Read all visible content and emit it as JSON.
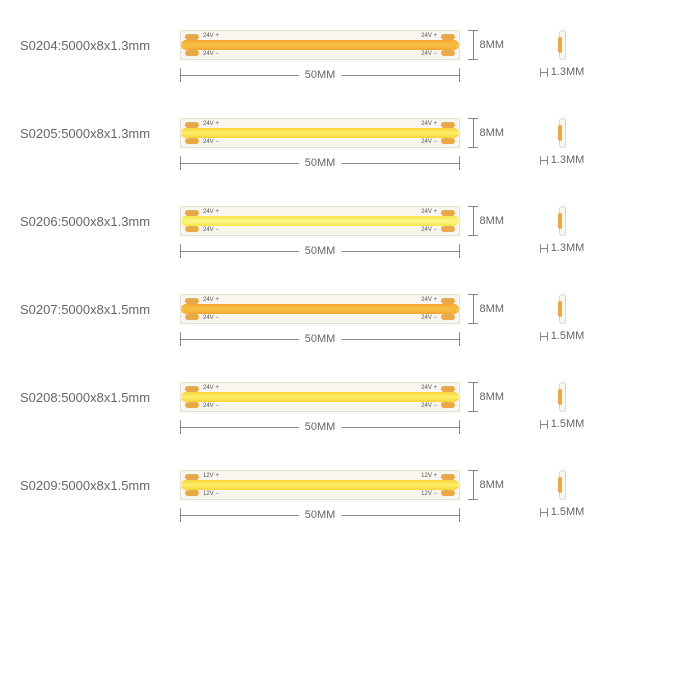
{
  "colors": {
    "orange_grad": "linear-gradient(to bottom,#f6a531,#f5c249,#f6a531)",
    "yellow_grad": "linear-gradient(to bottom,#f6d23a,#fdf06a,#f6d23a)",
    "lightyellow_grad": "linear-gradient(to bottom,#f5e747,#fbf58a,#f5e747)",
    "pad_color": "#e8a94a",
    "strip_bg": "#f9f5ef",
    "dim_color": "#888888",
    "text_color": "#666666"
  },
  "rows": [
    {
      "label": "S0204:5000x8x1.3mm",
      "led_gradient": "linear-gradient(to bottom,#f6a531,#f5c249,#f6a531)",
      "voltage": "24V",
      "length_label": "50MM",
      "height_label": "8MM",
      "thickness_label": "1.3MM"
    },
    {
      "label": "S0205:5000x8x1.3mm",
      "led_gradient": "linear-gradient(to bottom,#f6d23a,#fdf06a,#f6d23a)",
      "voltage": "24V",
      "length_label": "50MM",
      "height_label": "8MM",
      "thickness_label": "1.3MM"
    },
    {
      "label": "S0206:5000x8x1.3mm",
      "led_gradient": "linear-gradient(to bottom,#f5e747,#fbf58a,#f5e747)",
      "voltage": "24V",
      "length_label": "50MM",
      "height_label": "8MM",
      "thickness_label": "1.3MM"
    },
    {
      "label": "S0207:5000x8x1.5mm",
      "led_gradient": "linear-gradient(to bottom,#f6a531,#f5c249,#f6a531)",
      "voltage": "24V",
      "length_label": "50MM",
      "height_label": "8MM",
      "thickness_label": "1.5MM"
    },
    {
      "label": "S0208:5000x8x1.5mm",
      "led_gradient": "linear-gradient(to bottom,#f6d23a,#fdf06a,#f6d23a)",
      "voltage": "24V",
      "length_label": "50MM",
      "height_label": "8MM",
      "thickness_label": "1.5MM"
    },
    {
      "label": "S0209:5000x8x1.5mm",
      "led_gradient": "linear-gradient(to bottom,#f6d23a,#fdf06a,#f6d23a)",
      "voltage": "12V",
      "length_label": "50MM",
      "height_label": "8MM",
      "thickness_label": "1.5MM"
    }
  ]
}
